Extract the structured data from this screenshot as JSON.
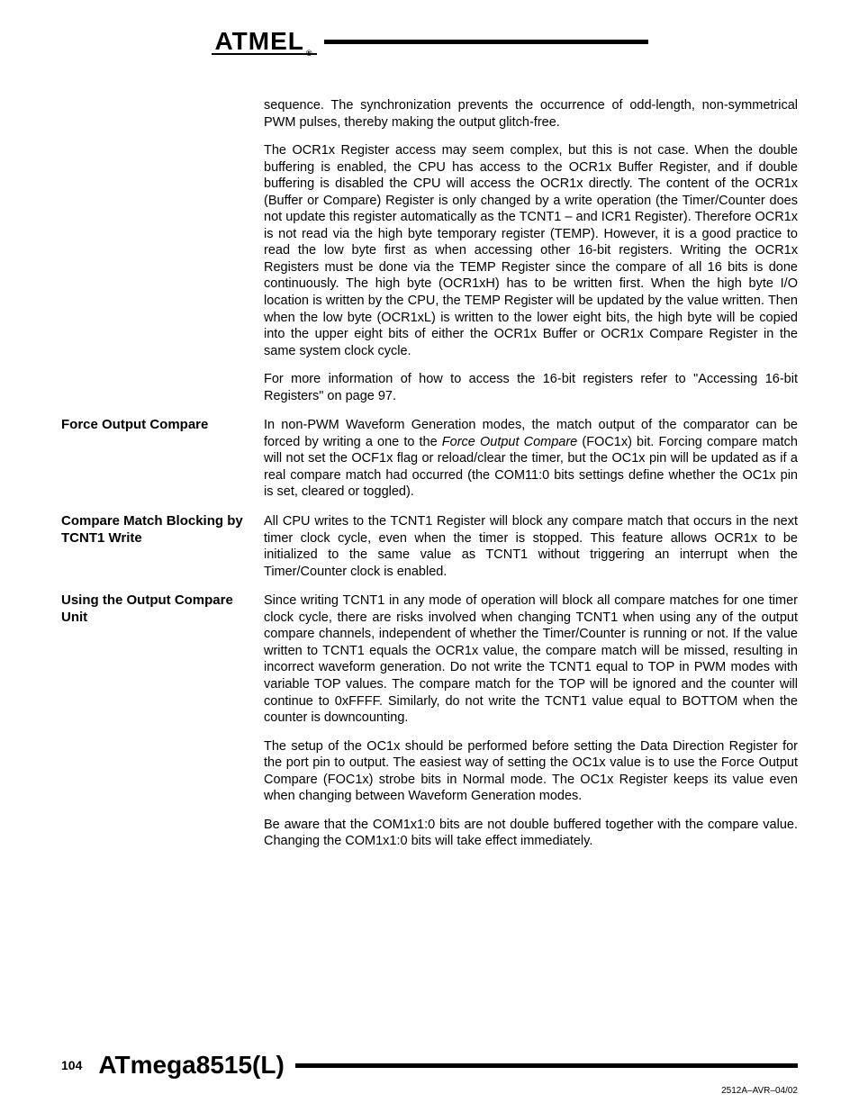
{
  "brand": "ATMEL",
  "header_rule_color": "#000000",
  "page_number": "104",
  "doc_title": "ATmega8515(L)",
  "doc_ref": "2512A–AVR–04/02",
  "sections": {
    "intro": {
      "p1": "sequence. The synchronization prevents the occurrence of odd-length, non-symmetrical PWM pulses, thereby making the output glitch-free.",
      "p2": "The OCR1x Register access may seem complex, but this is not case. When the double buffering is enabled, the CPU has access to the OCR1x Buffer Register, and if double buffering is disabled the CPU will access the OCR1x directly. The content of the OCR1x (Buffer or Compare) Register is only changed by a write operation (the Timer/Counter does not update this register automatically as the TCNT1 – and ICR1 Register). Therefore OCR1x is not read via the high byte temporary register (TEMP). However, it is a good practice to read the low byte first as when accessing other 16-bit registers. Writing the OCR1x Registers must be done via the TEMP Register since the compare of all 16 bits is done continuously. The high byte (OCR1xH) has to be written first. When the high byte I/O location is written by the CPU, the TEMP Register will be updated by the value written. Then when the low byte (OCR1xL) is written to the lower eight bits, the high byte will be copied into the upper eight bits of either the OCR1x Buffer or OCR1x Compare Register in the same system clock cycle.",
      "p3": "For more information of how to access the 16-bit registers refer to \"Accessing 16-bit Registers\" on page 97."
    },
    "force": {
      "heading": "Force Output Compare",
      "p1_a": "In non-PWM Waveform Generation modes, the match output of the comparator can be forced by writing a one to the ",
      "p1_em": "Force Output Compare",
      "p1_b": " (FOC1x) bit. Forcing compare match will not set the OCF1x flag or reload/clear the timer, but the OC1x pin will be updated as if a real compare match had occurred (the COM11:0 bits settings define whether the OC1x pin is set, cleared or toggled)."
    },
    "blocking": {
      "heading": "Compare Match Blocking by TCNT1 Write",
      "p1": "All CPU writes to the TCNT1 Register will block any compare match that occurs in the next timer clock cycle, even when the timer is stopped. This feature allows OCR1x to be initialized to the same value as TCNT1 without triggering an interrupt when the Timer/Counter clock is enabled."
    },
    "using": {
      "heading": "Using the Output Compare Unit",
      "p1": "Since writing TCNT1 in any mode of operation will block all compare matches for one timer clock cycle, there are risks involved when changing TCNT1 when using any of the output compare channels, independent of whether the Timer/Counter is running or not. If the value written to TCNT1 equals the OCR1x value, the compare match will be missed, resulting in incorrect waveform generation. Do not write the TCNT1 equal to TOP in PWM modes with variable TOP values. The compare match for the TOP will be ignored and the counter will continue to 0xFFFF. Similarly, do not write the TCNT1 value equal to BOTTOM when the counter is downcounting.",
      "p2": "The setup of the OC1x should be performed before setting the Data Direction Register for the port pin to output. The easiest way of setting the OC1x value is to use the Force Output Compare (FOC1x) strobe bits in Normal mode. The OC1x Register keeps its value even when changing between Waveform Generation modes.",
      "p3": "Be aware that the COM1x1:0 bits are not double buffered together with the compare value. Changing the COM1x1:0 bits will take effect immediately."
    }
  }
}
